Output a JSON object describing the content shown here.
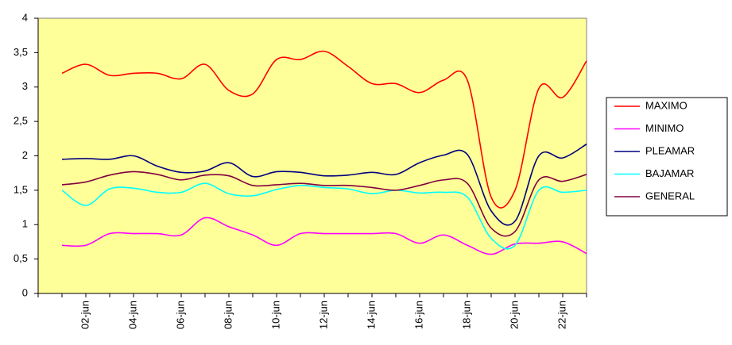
{
  "chart_data": {
    "type": "line",
    "categories": [
      null,
      "02-jun",
      null,
      "04-jun",
      null,
      "06-jun",
      null,
      "08-jun",
      null,
      "10-jun",
      null,
      "12-jun",
      null,
      "14-jun",
      null,
      "16-jun",
      null,
      "18-jun",
      null,
      "20-jun",
      null,
      "22-jun",
      null
    ],
    "series": [
      {
        "name": "MAXIMO",
        "color": "#ff0000",
        "values": [
          3.2,
          3.33,
          3.17,
          3.2,
          3.2,
          3.12,
          3.33,
          2.95,
          2.9,
          3.4,
          3.4,
          3.52,
          3.3,
          3.05,
          3.05,
          2.92,
          3.1,
          3.1,
          1.4,
          1.5,
          2.98,
          2.85,
          3.38
        ]
      },
      {
        "name": "MINIMO",
        "color": "#ff00ff",
        "values": [
          0.7,
          0.7,
          0.87,
          0.87,
          0.87,
          0.85,
          1.1,
          0.97,
          0.85,
          0.7,
          0.87,
          0.87,
          0.87,
          0.87,
          0.87,
          0.73,
          0.85,
          0.7,
          0.57,
          0.72,
          0.73,
          0.75,
          0.58
        ]
      },
      {
        "name": "PLEAMAR",
        "color": "#000080",
        "values": [
          1.95,
          1.96,
          1.95,
          2.0,
          1.85,
          1.76,
          1.78,
          1.9,
          1.7,
          1.77,
          1.76,
          1.71,
          1.72,
          1.76,
          1.73,
          1.9,
          2.01,
          2.02,
          1.2,
          1.05,
          2.0,
          1.97,
          2.17
        ]
      },
      {
        "name": "BAJAMAR",
        "color": "#00ffff",
        "values": [
          1.5,
          1.28,
          1.52,
          1.53,
          1.47,
          1.47,
          1.6,
          1.45,
          1.42,
          1.51,
          1.57,
          1.54,
          1.52,
          1.45,
          1.5,
          1.46,
          1.47,
          1.4,
          0.8,
          0.7,
          1.5,
          1.47,
          1.5
        ]
      },
      {
        "name": "GENERAL",
        "color": "#800040",
        "values": [
          1.58,
          1.62,
          1.72,
          1.77,
          1.73,
          1.65,
          1.72,
          1.71,
          1.57,
          1.58,
          1.6,
          1.57,
          1.57,
          1.54,
          1.5,
          1.57,
          1.65,
          1.6,
          0.95,
          0.9,
          1.65,
          1.63,
          1.73
        ]
      }
    ],
    "ylim": [
      0,
      4
    ],
    "yticks": [
      0,
      {
        "value": 0.5,
        "label": "0,5"
      },
      1,
      {
        "value": 1.5,
        "label": "1,5"
      },
      2,
      {
        "value": 2.5,
        "label": "2,5"
      },
      3,
      {
        "value": 3.5,
        "label": "3,5"
      },
      4
    ],
    "grid": false,
    "background": "#ffff99",
    "legend": "right"
  }
}
